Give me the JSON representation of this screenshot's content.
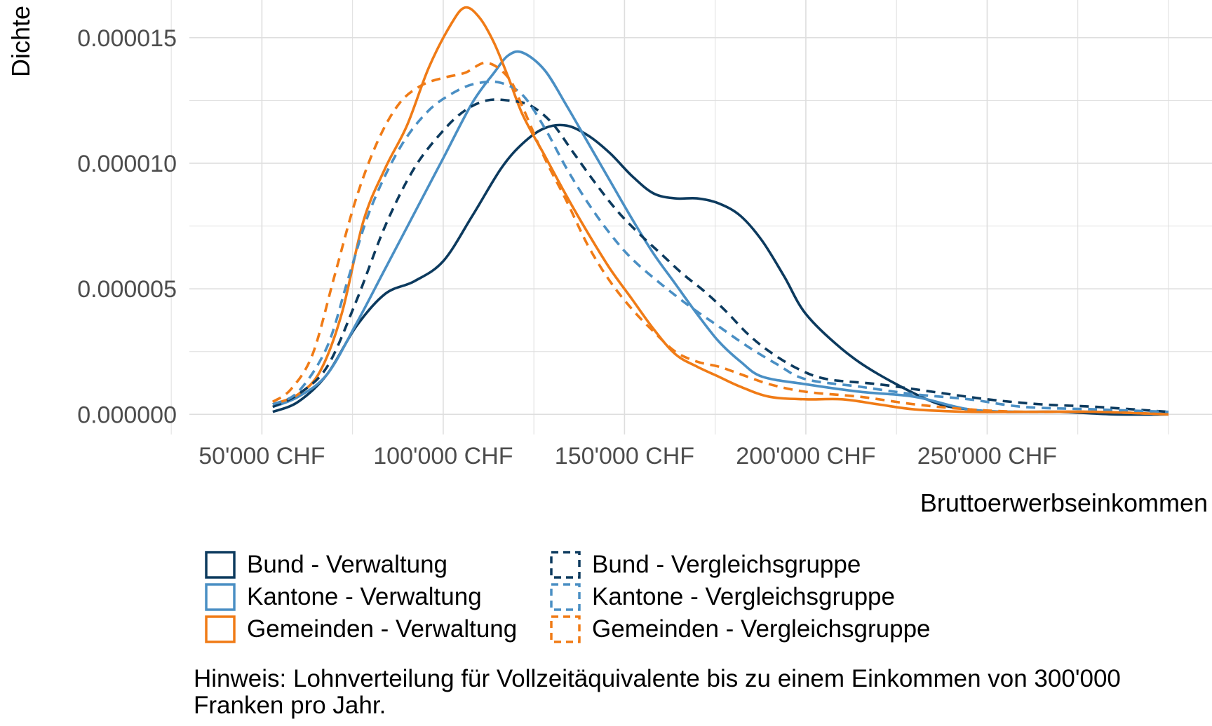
{
  "chart_data": {
    "type": "line",
    "title": "",
    "xlabel": "Bruttoerwerbseinkommen",
    "ylabel": "Dichte",
    "xlim": [
      30000,
      312000
    ],
    "ylim": [
      -8e-07,
      1.65e-05
    ],
    "x_ticks": [
      50000,
      100000,
      150000,
      200000,
      250000
    ],
    "x_tick_labels": [
      "50'000 CHF",
      "100'000 CHF",
      "150'000 CHF",
      "200'000 CHF",
      "250'000 CHF"
    ],
    "y_ticks": [
      0,
      5e-06,
      1e-05,
      1.5e-05
    ],
    "y_tick_labels": [
      "0.000000",
      "0.000005",
      "0.000010",
      "0.000015"
    ],
    "grid": true,
    "legend_position": "bottom",
    "series": [
      {
        "name": "Bund - Verwaltung",
        "color": "#0c3a5e",
        "dash": "solid",
        "x": [
          53000,
          60000,
          68000,
          76000,
          84000,
          92000,
          100000,
          108000,
          116000,
          122000,
          128000,
          134000,
          140000,
          146000,
          152000,
          158000,
          164000,
          170000,
          176000,
          182000,
          188000,
          194000,
          200000,
          210000,
          220000,
          235000,
          245000,
          255000,
          270000,
          285000,
          300000
        ],
        "y": [
          1e-07,
          5e-07,
          1.6e-06,
          3.5e-06,
          4.8e-06,
          5.3e-06,
          6.1e-06,
          7.9e-06,
          9.8e-06,
          1.08e-05,
          1.14e-05,
          1.15e-05,
          1.11e-05,
          1.04e-05,
          9.5e-06,
          8.8e-06,
          8.6e-06,
          8.6e-06,
          8.4e-06,
          7.9e-06,
          6.9e-06,
          5.5e-06,
          4e-06,
          2.6e-06,
          1.6e-06,
          5e-07,
          2e-07,
          1e-07,
          1e-07,
          0,
          0
        ]
      },
      {
        "name": "Kantone - Verwaltung",
        "color": "#4a8fc4",
        "dash": "solid",
        "x": [
          53000,
          60000,
          68000,
          76000,
          84000,
          92000,
          100000,
          108000,
          114000,
          118000,
          122000,
          128000,
          134000,
          140000,
          146000,
          152000,
          158000,
          164000,
          170000,
          176000,
          182000,
          188000,
          200000,
          215000,
          230000,
          245000,
          260000,
          280000,
          300000
        ],
        "y": [
          3e-07,
          7e-07,
          1.6e-06,
          3.6e-06,
          5.8e-06,
          8e-06,
          1.02e-05,
          1.24e-05,
          1.36e-05,
          1.43e-05,
          1.44e-05,
          1.37e-05,
          1.23e-05,
          1.08e-05,
          9.3e-06,
          7.8e-06,
          6.4e-06,
          5.2e-06,
          4e-06,
          2.9e-06,
          2.1e-06,
          1.5e-06,
          1.2e-06,
          9e-07,
          7e-07,
          2e-07,
          1e-07,
          1e-07,
          0
        ]
      },
      {
        "name": "Gemeinden - Verwaltung",
        "color": "#f07b16",
        "dash": "solid",
        "x": [
          53000,
          60000,
          66000,
          72000,
          78000,
          84000,
          90000,
          96000,
          102000,
          106000,
          110000,
          114000,
          118000,
          122000,
          128000,
          134000,
          140000,
          146000,
          152000,
          158000,
          164000,
          170000,
          176000,
          182000,
          190000,
          200000,
          210000,
          220000,
          230000,
          245000,
          260000,
          280000,
          300000
        ],
        "y": [
          4e-07,
          8e-07,
          1.7e-06,
          4e-06,
          7.7e-06,
          9.8e-06,
          1.15e-05,
          1.38e-05,
          1.55e-05,
          1.62e-05,
          1.58e-05,
          1.48e-05,
          1.34e-05,
          1.19e-05,
          1.03e-05,
          8.7e-06,
          7.2e-06,
          5.8e-06,
          4.6e-06,
          3.4e-06,
          2.4e-06,
          1.9e-06,
          1.5e-06,
          1.1e-06,
          7e-07,
          6e-07,
          6e-07,
          4e-07,
          2e-07,
          1e-07,
          1e-07,
          1e-07,
          0
        ]
      },
      {
        "name": "Bund - Vergleichsgruppe",
        "color": "#0c3a5e",
        "dash": "dashed",
        "x": [
          53000,
          60000,
          68000,
          76000,
          84000,
          92000,
          100000,
          106000,
          112000,
          118000,
          124000,
          130000,
          136000,
          142000,
          148000,
          154000,
          160000,
          166000,
          172000,
          178000,
          184000,
          190000,
          198000,
          206000,
          220000,
          235000,
          250000,
          265000,
          280000,
          300000
        ],
        "y": [
          3e-07,
          8e-07,
          1.9e-06,
          4.5e-06,
          7.5e-06,
          9.8e-06,
          1.13e-05,
          1.21e-05,
          1.25e-05,
          1.25e-05,
          1.23e-05,
          1.16e-05,
          1.04e-05,
          9.2e-06,
          8.1e-06,
          7.2e-06,
          6.4e-06,
          5.6e-06,
          4.9e-06,
          4.1e-06,
          3.2e-06,
          2.5e-06,
          1.8e-06,
          1.4e-06,
          1.2e-06,
          9e-07,
          6e-07,
          4e-07,
          3e-07,
          1e-07
        ]
      },
      {
        "name": "Kantone - Vergleichsgruppe",
        "color": "#4a8fc4",
        "dash": "dashed",
        "x": [
          53000,
          60000,
          68000,
          74000,
          80000,
          88000,
          96000,
          104000,
          110000,
          116000,
          122000,
          128000,
          134000,
          140000,
          146000,
          152000,
          160000,
          168000,
          176000,
          184000,
          192000,
          200000,
          215000,
          230000,
          245000,
          260000,
          280000,
          300000
        ],
        "y": [
          4e-07,
          9e-07,
          2.7e-06,
          5.5e-06,
          8.2e-06,
          1.06e-05,
          1.21e-05,
          1.29e-05,
          1.32e-05,
          1.32e-05,
          1.27e-05,
          1.14e-05,
          9.8e-06,
          8.4e-06,
          7.2e-06,
          6.2e-06,
          5.2e-06,
          4.3e-06,
          3.5e-06,
          2.7e-06,
          2e-06,
          1.4e-06,
          1.1e-06,
          8e-07,
          6e-07,
          3e-07,
          2e-07,
          1e-07
        ]
      },
      {
        "name": "Gemeinden - Vergleichsgruppe",
        "color": "#f07b16",
        "dash": "dashed",
        "x": [
          53000,
          58000,
          64000,
          70000,
          76000,
          82000,
          88000,
          94000,
          100000,
          106000,
          112000,
          118000,
          122000,
          128000,
          134000,
          140000,
          146000,
          152000,
          158000,
          164000,
          170000,
          176000,
          182000,
          190000,
          200000,
          215000,
          230000,
          245000,
          260000,
          280000,
          300000
        ],
        "y": [
          5e-07,
          1e-06,
          2.4e-06,
          5.5e-06,
          8.6e-06,
          1.09e-05,
          1.24e-05,
          1.31e-05,
          1.34e-05,
          1.36e-05,
          1.4e-05,
          1.34e-05,
          1.22e-05,
          1.02e-05,
          8.5e-06,
          6.7e-06,
          5.3e-06,
          4.2e-06,
          3.3e-06,
          2.5e-06,
          2.1e-06,
          1.9e-06,
          1.6e-06,
          1.2e-06,
          9e-07,
          7e-07,
          4e-07,
          2e-07,
          1e-07,
          1e-07,
          0
        ]
      }
    ],
    "note": "Hinweis: Lohnverteilung für Vollzeitäquivalente bis zu einem Einkommen von 300'000 Franken pro Jahr."
  }
}
